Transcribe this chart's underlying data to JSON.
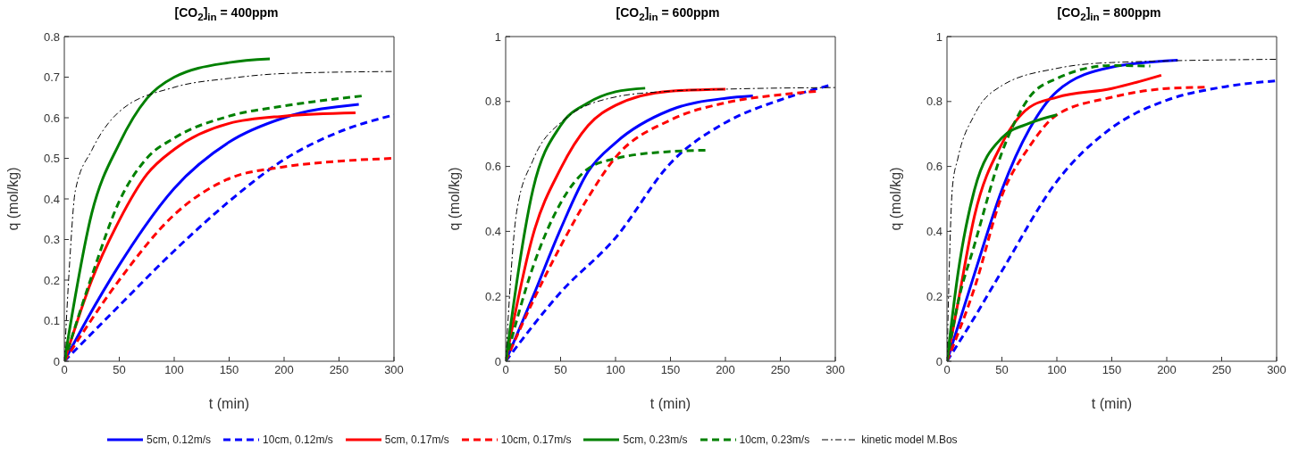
{
  "chart_data": [
    {
      "type": "line",
      "title": "[CO$_{2}$]$_{in}$ = 400ppm",
      "xlabel": "t (min)",
      "ylabel": "q (mol/kg)",
      "xlim": [
        0,
        300
      ],
      "xticks": [
        0,
        50,
        100,
        150,
        200,
        250,
        300
      ],
      "ylim": [
        0,
        0.8
      ],
      "yticks": [
        0,
        0.1,
        0.2,
        0.3,
        0.4,
        0.5,
        0.6,
        0.7,
        0.8
      ],
      "legend": false,
      "series": [
        {
          "color": "#0000ff",
          "line_style": "solid",
          "x": [
            0,
            20,
            50,
            100,
            150,
            200,
            268
          ],
          "values": [
            0,
            0.1,
            0.237,
            0.426,
            0.54,
            0.6,
            0.633
          ]
        },
        {
          "color": "#0000ff",
          "line_style": "dashed",
          "x": [
            0,
            50,
            100,
            150,
            200,
            250,
            300
          ],
          "values": [
            0,
            0.137,
            0.272,
            0.394,
            0.497,
            0.565,
            0.607
          ]
        },
        {
          "color": "#ff0000",
          "line_style": "solid",
          "x": [
            0,
            25,
            50,
            75,
            100,
            150,
            200,
            265
          ],
          "values": [
            0,
            0.2,
            0.347,
            0.46,
            0.522,
            0.586,
            0.604,
            0.612
          ]
        },
        {
          "color": "#ff0000",
          "line_style": "dashed",
          "x": [
            0,
            50,
            100,
            150,
            200,
            250,
            300
          ],
          "values": [
            0,
            0.2,
            0.361,
            0.45,
            0.479,
            0.493,
            0.5
          ]
        },
        {
          "color": "#008000",
          "line_style": "solid",
          "x": [
            0,
            25,
            50,
            75,
            100,
            150,
            187
          ],
          "values": [
            0,
            0.365,
            0.536,
            0.647,
            0.7,
            0.736,
            0.745
          ]
        },
        {
          "color": "#008000",
          "line_style": "dashed",
          "x": [
            0,
            25,
            50,
            75,
            100,
            150,
            200,
            272
          ],
          "values": [
            0,
            0.21,
            0.394,
            0.5,
            0.55,
            0.604,
            0.629,
            0.654
          ]
        },
        {
          "color": "#000000",
          "line_style": "dashdot",
          "x": [
            0,
            5,
            10,
            25,
            50,
            100,
            150,
            200,
            300
          ],
          "values": [
            0,
            0.25,
            0.42,
            0.52,
            0.615,
            0.675,
            0.697,
            0.709,
            0.714
          ]
        }
      ]
    },
    {
      "type": "line",
      "title": "[CO$_{2}$]$_{in}$ = 600ppm",
      "xlabel": "t (min)",
      "ylabel": "q (mol/kg)",
      "xlim": [
        0,
        300
      ],
      "xticks": [
        0,
        50,
        100,
        150,
        200,
        250,
        300
      ],
      "ylim": [
        0,
        1
      ],
      "yticks": [
        0,
        0.2,
        0.4,
        0.6,
        0.8,
        1
      ],
      "legend": "bottom",
      "series": [
        {
          "name": "5cm, 0.12m/s",
          "color": "#0000ff",
          "line_style": "solid",
          "x": [
            0,
            25,
            50,
            75,
            100,
            150,
            200,
            225
          ],
          "values": [
            0,
            0.2,
            0.407,
            0.584,
            0.673,
            0.774,
            0.81,
            0.817
          ]
        },
        {
          "name": "10cm, 0.12m/s",
          "color": "#0000ff",
          "line_style": "dashed",
          "x": [
            0,
            50,
            100,
            150,
            200,
            250,
            295
          ],
          "values": [
            0,
            0.212,
            0.38,
            0.61,
            0.735,
            0.805,
            0.85
          ]
        },
        {
          "name": "5cm, 0.17m/s",
          "color": "#ff0000",
          "line_style": "solid",
          "x": [
            0,
            25,
            50,
            75,
            100,
            150,
            200
          ],
          "values": [
            0,
            0.39,
            0.593,
            0.726,
            0.788,
            0.832,
            0.838
          ]
        },
        {
          "name": "10cm, 0.17m/s",
          "color": "#ff0000",
          "line_style": "dashed",
          "x": [
            0,
            25,
            50,
            75,
            100,
            150,
            200,
            250,
            285
          ],
          "values": [
            0,
            0.186,
            0.354,
            0.504,
            0.628,
            0.743,
            0.796,
            0.821,
            0.832
          ]
        },
        {
          "name": "5cm, 0.23m/s",
          "color": "#008000",
          "line_style": "solid",
          "x": [
            0,
            25,
            50,
            75,
            100,
            127
          ],
          "values": [
            0,
            0.531,
            0.726,
            0.796,
            0.83,
            0.841
          ]
        },
        {
          "name": "10cm, 0.23m/s",
          "color": "#008000",
          "line_style": "dashed",
          "x": [
            0,
            25,
            50,
            75,
            100,
            150,
            185
          ],
          "values": [
            0,
            0.292,
            0.487,
            0.593,
            0.624,
            0.646,
            0.65
          ]
        },
        {
          "name": "kinetic model M.Bos",
          "color": "#000000",
          "line_style": "dashdot",
          "x": [
            0,
            10,
            25,
            50,
            100,
            150,
            200,
            300
          ],
          "values": [
            0,
            0.46,
            0.62,
            0.735,
            0.814,
            0.832,
            0.838,
            0.843
          ]
        }
      ]
    },
    {
      "type": "line",
      "title": "[CO$_{2}$]$_{in}$ = 800ppm",
      "xlabel": "t (min)",
      "ylabel": "q (mol/kg)",
      "xlim": [
        0,
        300
      ],
      "xticks": [
        0,
        50,
        100,
        150,
        200,
        250,
        300
      ],
      "ylim": [
        0,
        1
      ],
      "yticks": [
        0,
        0.2,
        0.4,
        0.6,
        0.8,
        1
      ],
      "legend": false,
      "series": [
        {
          "color": "#0000ff",
          "line_style": "solid",
          "x": [
            0,
            25,
            50,
            75,
            100,
            150,
            210
          ],
          "values": [
            0,
            0.269,
            0.528,
            0.715,
            0.831,
            0.906,
            0.927
          ]
        },
        {
          "color": "#0000ff",
          "line_style": "dashed",
          "x": [
            0,
            25,
            50,
            100,
            150,
            200,
            250,
            300
          ],
          "values": [
            0,
            0.135,
            0.278,
            0.554,
            0.719,
            0.804,
            0.844,
            0.864
          ]
        },
        {
          "color": "#ff0000",
          "line_style": "solid",
          "x": [
            0,
            10,
            25,
            50,
            75,
            100,
            150,
            195
          ],
          "values": [
            0,
            0.18,
            0.447,
            0.67,
            0.782,
            0.813,
            0.84,
            0.881
          ]
        },
        {
          "color": "#ff0000",
          "line_style": "dashed",
          "x": [
            0,
            25,
            50,
            75,
            100,
            150,
            200,
            235
          ],
          "values": [
            0,
            0.225,
            0.51,
            0.661,
            0.759,
            0.813,
            0.84,
            0.844
          ]
        },
        {
          "color": "#008000",
          "line_style": "solid",
          "x": [
            0,
            10,
            25,
            50,
            75,
            100
          ],
          "values": [
            0,
            0.27,
            0.528,
            0.688,
            0.733,
            0.759
          ]
        },
        {
          "color": "#008000",
          "line_style": "dashed",
          "x": [
            0,
            10,
            25,
            50,
            75,
            100,
            150,
            185
          ],
          "values": [
            0,
            0.18,
            0.358,
            0.643,
            0.813,
            0.871,
            0.911,
            0.909
          ]
        },
        {
          "color": "#000000",
          "line_style": "dashdot",
          "x": [
            0,
            5,
            10,
            25,
            50,
            100,
            150,
            300
          ],
          "values": [
            0,
            0.537,
            0.626,
            0.759,
            0.849,
            0.902,
            0.92,
            0.93
          ]
        }
      ]
    }
  ]
}
